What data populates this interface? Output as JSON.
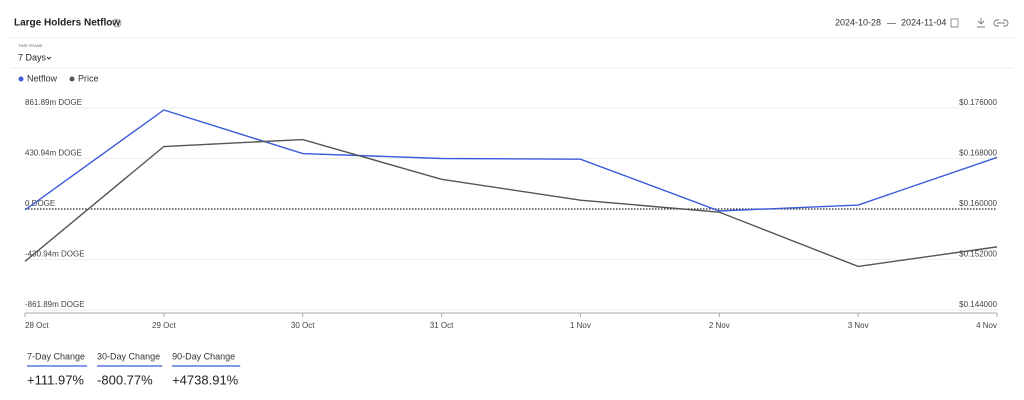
{
  "header": {
    "title": "Large Holders Netflow",
    "date_start": "2024-10-28",
    "date_separator": "—",
    "date_end": "2024-11-04",
    "timeframe_label": "TIME FRAME",
    "timeframe": "7 Days"
  },
  "chart_data": {
    "type": "line",
    "categories": [
      "28 Oct",
      "29 Oct",
      "30 Oct",
      "31 Oct",
      "1 Nov",
      "2 Nov",
      "3 Nov",
      "4 Nov"
    ],
    "series": [
      {
        "name": "Netflow",
        "color": "#3b5bdb",
        "values": [
          -8,
          845,
          473,
          431,
          425,
          -17,
          34,
          440
        ]
      },
      {
        "name": "Price",
        "color": "#555555",
        "axis": "y2",
        "values": [
          0.1517,
          0.1699,
          0.171,
          0.1647,
          0.1614,
          0.1595,
          0.1509,
          0.154
        ]
      }
    ],
    "ylim": [
      -861.89,
      861.89
    ],
    "yticks": [
      {
        "value": 861.89,
        "label": "861.89m DOGE"
      },
      {
        "value": 430.94,
        "label": "430.94m DOGE"
      },
      {
        "value": 0,
        "label": "0 DOGE"
      },
      {
        "value": -430.94,
        "label": "-430.94m DOGE"
      },
      {
        "value": -861.89,
        "label": "-861.89m DOGE"
      }
    ],
    "y2lim": [
      0.144,
      0.176
    ],
    "y2ticks": [
      {
        "value": 0.176,
        "label": "$0.176000"
      },
      {
        "value": 0.168,
        "label": "$0.168000"
      },
      {
        "value": 0.16,
        "label": "$0.160000"
      },
      {
        "value": 0.152,
        "label": "$0.152000"
      },
      {
        "value": 0.144,
        "label": "$0.144000"
      }
    ],
    "grid": true
  },
  "changes": [
    {
      "label": "7-Day Change",
      "value": "+111.97%"
    },
    {
      "label": "30-Day Change",
      "value": "-800.77%"
    },
    {
      "label": "90-Day Change",
      "value": "+4738.91%"
    }
  ]
}
